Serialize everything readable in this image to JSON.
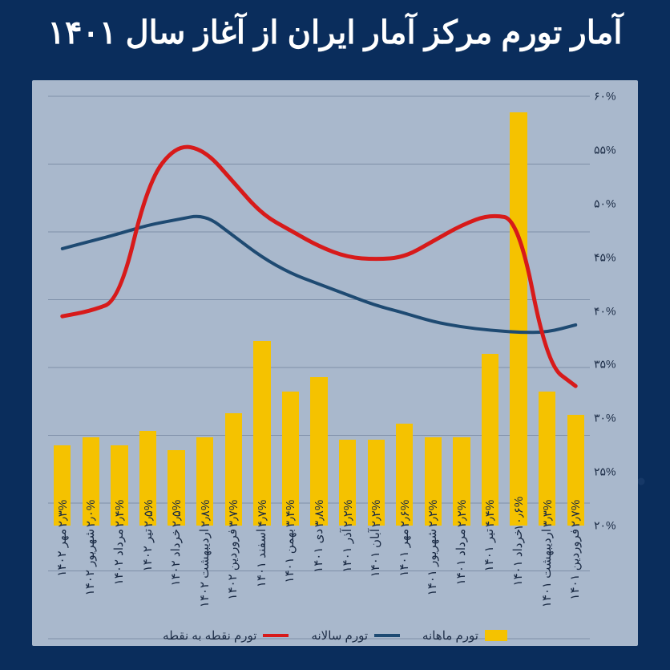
{
  "title": "آمار تورم مرکز آمار ایران از آغاز سال ۱۴۰۱",
  "watermarks": [
    "تجارت نیوز",
    "تجارت نیوز",
    "تجارت نیوز"
  ],
  "chart": {
    "type": "bar+line",
    "background_color": "#a9b8cc",
    "grid_color": "#7e8fa8",
    "page_bg": "#0a2d5c",
    "title_color": "#ffffff",
    "title_fontsize": 40,
    "label_color": "#1a2a44",
    "ylim": [
      20,
      60
    ],
    "ytick_step": 5,
    "yticks": [
      "۲۰%",
      "۲۵%",
      "۳۰%",
      "۳۵%",
      "۴۰%",
      "۴۵%",
      "۵۰%",
      "۵۵%",
      "۶۰%"
    ],
    "categories": [
      "فروردین ۱۴۰۱",
      "اردیبهشت ۱۴۰۱",
      "خرداد ۱۴۰۱",
      "تیر ۱۴۰۱",
      "مرداد ۱۴۰۱",
      "شهریور ۱۴۰۱",
      "مهر ۱۴۰۱",
      "آبان ۱۴۰۱",
      "آذر ۱۴۰۱",
      "دی ۱۴۰۱",
      "بهمن ۱۴۰۱",
      "اسفند ۱۴۰۱",
      "فروردین ۱۴۰۲",
      "اردیبهشت ۱۴۰۲",
      "خرداد ۱۴۰۲",
      "تیر ۱۴۰۲",
      "مرداد ۱۴۰۲",
      "شهریور ۱۴۰۲",
      "مهر ۱۴۰۲"
    ],
    "bars": {
      "color": "#f5c200",
      "width_frac": 0.6,
      "values": [
        30.3,
        32.5,
        58.5,
        36.0,
        28.2,
        28.2,
        29.5,
        28.0,
        28.0,
        33.8,
        32.5,
        37.2,
        30.5,
        28.2,
        27.0,
        28.8,
        27.5,
        28.2,
        27.5
      ],
      "labels": [
        "۲٫۷%",
        "۳٫۳%",
        "۱۰٫۶%",
        "۴٫۴%",
        "۲٫۲%",
        "۲٫۲%",
        "۲٫۶%",
        "۲٫۲%",
        "۲٫۲%",
        "۳٫۸%",
        "۳٫۴%",
        "۴٫۷%",
        "۳٫۷%",
        "۲٫۸%",
        "۲٫۵%",
        "۲٫۵%",
        "۲٫۴%",
        "۲٫۰%",
        "۲٫۳%"
      ]
    },
    "lines": [
      {
        "name": "annual",
        "color": "#1e4a72",
        "width": 4,
        "values": [
          38.7,
          38.0,
          38.0,
          38.2,
          38.5,
          39.0,
          39.8,
          40.5,
          41.5,
          42.5,
          43.5,
          45.0,
          47.0,
          49.0,
          48.5,
          48.0,
          47.2,
          46.5,
          45.8
        ]
      },
      {
        "name": "point_to_point",
        "color": "#d71a1a",
        "width": 5,
        "values": [
          33.0,
          35.0,
          48.5,
          49.0,
          48.0,
          46.5,
          45.0,
          44.8,
          45.0,
          46.0,
          47.5,
          49.0,
          52.0,
          55.0,
          55.5,
          52.0,
          41.0,
          40.0,
          39.5
        ]
      }
    ],
    "legend": [
      {
        "type": "bar",
        "label": "تورم ماهانه",
        "color": "#f5c200"
      },
      {
        "type": "line",
        "label": "تورم سالانه",
        "color": "#1e4a72"
      },
      {
        "type": "line",
        "label": "تورم نقطه به نقطه",
        "color": "#d71a1a"
      }
    ]
  }
}
